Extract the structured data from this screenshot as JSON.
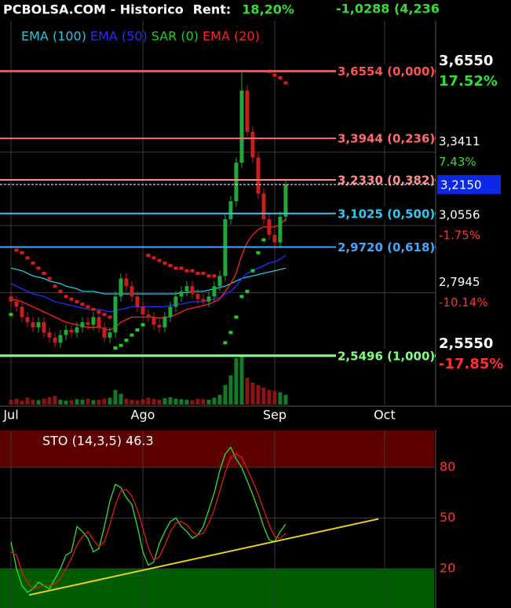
{
  "chart_data": {
    "type": "candlestick",
    "header": {
      "title": "PCBOLSA.COM - Historico",
      "rent_label": "Rent:",
      "rent": "18,20%",
      "change": "-1,0288 (4,236"
    },
    "xlim": [
      -2,
      77.3
    ],
    "xticks": [
      {
        "value": 0,
        "label": "Jul"
      },
      {
        "value": 24,
        "label": "Ago"
      },
      {
        "value": 48,
        "label": "Sep"
      },
      {
        "value": 68,
        "label": "Oct"
      }
    ],
    "ylim": [
      2.36,
      3.81
    ],
    "yticks": [
      {
        "value": 3.655,
        "label": "3,6550"
      },
      {
        "value": 3.3411,
        "label": "3,3411"
      },
      {
        "value": 3.0556,
        "label": "3,0556"
      },
      {
        "value": 2.7945,
        "label": "2,7945"
      },
      {
        "value": 2.555,
        "label": "2,5550"
      }
    ],
    "ytick_changes": [
      {
        "value": 17.52,
        "label": "17.52%"
      },
      {
        "value": 7.43,
        "label": "7.43%"
      },
      {
        "value": -1.75,
        "label": "-1.75%"
      },
      {
        "value": -10.14,
        "label": "-10.14%"
      },
      {
        "value": -17.85,
        "label": "-17.85%"
      }
    ],
    "last_price": {
      "value": 3.215,
      "label": "3,2150"
    },
    "grid": true,
    "candles": {
      "up_color": "#22a83a",
      "down_color": "#c81e1e",
      "open": [
        2.78,
        2.76,
        2.74,
        2.7,
        2.68,
        2.66,
        2.68,
        2.64,
        2.62,
        2.6,
        2.63,
        2.65,
        2.64,
        2.66,
        2.68,
        2.67,
        2.7,
        2.66,
        2.62,
        2.64,
        2.78,
        2.85,
        2.82,
        2.78,
        2.74,
        2.71,
        2.7,
        2.67,
        2.66,
        2.7,
        2.74,
        2.78,
        2.8,
        2.82,
        2.79,
        2.77,
        2.76,
        2.78,
        2.82,
        2.86,
        3.08,
        3.15,
        3.3,
        3.58,
        3.42,
        3.32,
        3.18,
        3.08,
        3.02,
        2.99,
        3.09
      ],
      "high": [
        2.8,
        2.78,
        2.76,
        2.72,
        2.7,
        2.7,
        2.7,
        2.66,
        2.64,
        2.65,
        2.67,
        2.67,
        2.68,
        2.7,
        2.7,
        2.72,
        2.72,
        2.68,
        2.66,
        2.8,
        2.87,
        2.87,
        2.84,
        2.8,
        2.76,
        2.73,
        2.72,
        2.69,
        2.72,
        2.76,
        2.8,
        2.82,
        2.84,
        2.84,
        2.81,
        2.79,
        2.8,
        2.84,
        2.88,
        3.1,
        3.17,
        3.32,
        3.655,
        3.6,
        3.44,
        3.34,
        3.2,
        3.1,
        3.04,
        3.11,
        3.235
      ],
      "low": [
        2.74,
        2.72,
        2.68,
        2.66,
        2.64,
        2.64,
        2.62,
        2.6,
        2.58,
        2.58,
        2.61,
        2.62,
        2.62,
        2.64,
        2.65,
        2.65,
        2.64,
        2.6,
        2.6,
        2.62,
        2.76,
        2.8,
        2.76,
        2.72,
        2.69,
        2.68,
        2.65,
        2.64,
        2.64,
        2.68,
        2.72,
        2.76,
        2.78,
        2.77,
        2.75,
        2.74,
        2.74,
        2.76,
        2.8,
        2.84,
        3.06,
        3.13,
        3.28,
        3.4,
        3.3,
        3.16,
        3.06,
        3.0,
        2.96,
        2.97,
        3.07
      ],
      "close": [
        2.76,
        2.74,
        2.7,
        2.68,
        2.66,
        2.68,
        2.64,
        2.62,
        2.6,
        2.63,
        2.65,
        2.64,
        2.66,
        2.68,
        2.67,
        2.7,
        2.66,
        2.62,
        2.64,
        2.78,
        2.85,
        2.82,
        2.78,
        2.74,
        2.71,
        2.7,
        2.67,
        2.66,
        2.7,
        2.74,
        2.78,
        2.8,
        2.82,
        2.79,
        2.77,
        2.76,
        2.78,
        2.82,
        2.86,
        3.08,
        3.15,
        3.3,
        3.58,
        3.42,
        3.32,
        3.18,
        3.08,
        3.02,
        2.99,
        3.09,
        3.215
      ]
    },
    "volume": [
      10,
      12,
      8,
      14,
      10,
      9,
      12,
      15,
      18,
      10,
      8,
      9,
      11,
      10,
      12,
      9,
      10,
      12,
      14,
      30,
      22,
      12,
      10,
      9,
      11,
      14,
      12,
      10,
      13,
      15,
      12,
      11,
      10,
      9,
      12,
      11,
      10,
      14,
      20,
      40,
      60,
      95,
      100,
      55,
      45,
      40,
      35,
      30,
      28,
      25,
      20
    ],
    "series": [
      {
        "name": "EMA (100)",
        "color": "#20c8e0",
        "values": [
          2.89,
          2.885,
          2.88,
          2.87,
          2.86,
          2.855,
          2.85,
          2.84,
          2.835,
          2.83,
          2.82,
          2.815,
          2.81,
          2.8,
          2.8,
          2.8,
          2.795,
          2.79,
          2.79,
          2.79,
          2.79,
          2.79,
          2.79,
          2.79,
          2.79,
          2.79,
          2.79,
          2.79,
          2.79,
          2.79,
          2.79,
          2.795,
          2.795,
          2.8,
          2.8,
          2.8,
          2.805,
          2.81,
          2.815,
          2.82,
          2.83,
          2.84,
          2.85,
          2.855,
          2.86,
          2.865,
          2.87,
          2.875,
          2.88,
          2.885,
          2.89
        ]
      },
      {
        "name": "EMA (50)",
        "color": "#2030ff",
        "values": [
          2.83,
          2.82,
          2.81,
          2.8,
          2.79,
          2.785,
          2.78,
          2.77,
          2.76,
          2.755,
          2.75,
          2.745,
          2.74,
          2.735,
          2.73,
          2.73,
          2.73,
          2.725,
          2.72,
          2.725,
          2.73,
          2.735,
          2.74,
          2.74,
          2.74,
          2.74,
          2.74,
          2.74,
          2.74,
          2.745,
          2.75,
          2.75,
          2.755,
          2.76,
          2.76,
          2.76,
          2.765,
          2.77,
          2.775,
          2.79,
          2.8,
          2.82,
          2.85,
          2.87,
          2.88,
          2.89,
          2.9,
          2.91,
          2.915,
          2.925,
          2.94
        ]
      },
      {
        "name": "SAR (0)",
        "color": "#22cc22",
        "color_above": "#e01818",
        "dots": true,
        "values": [
          2.71,
          2.96,
          2.95,
          2.93,
          2.91,
          2.89,
          2.87,
          2.85,
          2.82,
          2.8,
          2.78,
          2.77,
          2.76,
          2.75,
          2.74,
          2.73,
          2.72,
          2.71,
          2.7,
          2.58,
          2.59,
          2.61,
          2.63,
          2.65,
          2.67,
          2.94,
          2.93,
          2.92,
          2.91,
          2.9,
          2.89,
          2.89,
          2.88,
          2.88,
          2.87,
          2.87,
          2.86,
          2.86,
          2.85,
          2.6,
          2.64,
          2.7,
          2.78,
          2.8,
          2.88,
          2.95,
          3.0,
          3.655,
          3.64,
          3.63,
          3.61
        ]
      },
      {
        "name": "EMA (20)",
        "color": "#ff2020",
        "values": [
          2.77,
          2.765,
          2.76,
          2.75,
          2.74,
          2.73,
          2.72,
          2.71,
          2.7,
          2.69,
          2.68,
          2.675,
          2.67,
          2.665,
          2.66,
          2.66,
          2.66,
          2.655,
          2.65,
          2.66,
          2.68,
          2.69,
          2.7,
          2.7,
          2.7,
          2.7,
          2.7,
          2.695,
          2.7,
          2.7,
          2.71,
          2.72,
          2.73,
          2.735,
          2.74,
          2.745,
          2.75,
          2.76,
          2.77,
          2.8,
          2.83,
          2.87,
          2.94,
          2.99,
          3.02,
          3.04,
          3.05,
          3.05,
          3.05,
          3.06,
          3.08
        ]
      }
    ],
    "fib_levels": [
      {
        "value": 3.6554,
        "label": "3,6554 (0,000)",
        "color": "#ff5050",
        "width": 3
      },
      {
        "value": 3.3944,
        "label": "3,3944 (0,236)",
        "color": "#ff6a6a",
        "width": 2
      },
      {
        "value": 3.233,
        "label": "3,2330 (0,382)",
        "color": "#ff8c8c",
        "width": 2
      },
      {
        "value": 3.1025,
        "label": "3,1025 (0,500)",
        "color": "#30c8f0",
        "width": 2
      },
      {
        "value": 2.972,
        "label": "2,9720 (0,618)",
        "color": "#40a8ff",
        "width": 2
      },
      {
        "value": 2.5496,
        "label": "2,5496 (1,000)",
        "color": "#80ff80",
        "width": 3
      }
    ],
    "oscillator": {
      "title": "STO (14,3,5) 46.3",
      "ylim": [
        -3.3,
        101.9
      ],
      "yticks": [
        20,
        50,
        80
      ],
      "upper_band": 80,
      "upper_color": "#5c0000",
      "lower_band": 20,
      "lower_color": "#005c00",
      "series": [
        {
          "color": "#30e030",
          "values": [
            36,
            20,
            10,
            6,
            8,
            12,
            10,
            8,
            14,
            20,
            28,
            30,
            45,
            42,
            38,
            30,
            32,
            45,
            60,
            70,
            68,
            62,
            58,
            45,
            30,
            22,
            24,
            35,
            42,
            48,
            50,
            45,
            42,
            38,
            40,
            45,
            55,
            65,
            78,
            88,
            92,
            85,
            80,
            72,
            64,
            55,
            45,
            37,
            36,
            42,
            46.3
          ]
        },
        {
          "color": "#e01818",
          "values": [
            30,
            28,
            18,
            12,
            8,
            9,
            10,
            10,
            11,
            14,
            20,
            26,
            34,
            39,
            42,
            37,
            33,
            36,
            46,
            58,
            66,
            67,
            63,
            55,
            44,
            32,
            25,
            27,
            34,
            42,
            47,
            48,
            46,
            42,
            40,
            41,
            47,
            55,
            66,
            77,
            86,
            88,
            86,
            79,
            72,
            64,
            55,
            46,
            39,
            38,
            41
          ]
        }
      ],
      "trendline": {
        "x": [
          3.3,
          66.9
        ],
        "values": [
          4.4,
          49.5
        ],
        "color": "#e8d020"
      }
    }
  }
}
